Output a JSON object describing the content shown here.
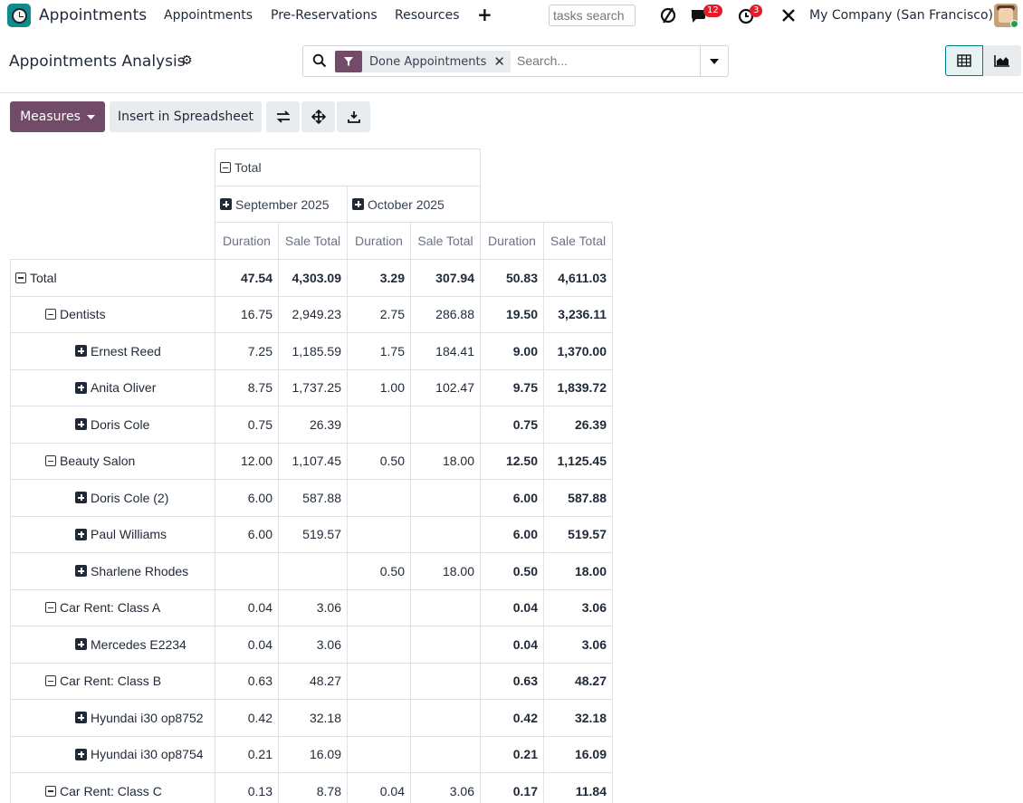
{
  "navbar": {
    "app_name": "Appointments",
    "menu": [
      "Appointments",
      "Pre-Reservations",
      "Resources"
    ],
    "tasks_search_placeholder": "tasks search",
    "messages_badge": "12",
    "activities_badge": "3",
    "company": "My Company (San Francisco)"
  },
  "control": {
    "title": "Appointments Analysis",
    "facet_label": "Done Appointments",
    "search_placeholder": "Search..."
  },
  "buttons": {
    "measures": "Measures",
    "insert_spreadsheet": "Insert in Spreadsheet"
  },
  "pivot": {
    "col_total": "Total",
    "months": [
      "September 2025",
      "October 2025"
    ],
    "measures": [
      "Duration",
      "Sale Total",
      "Duration",
      "Sale Total",
      "Duration",
      "Sale Total"
    ],
    "rows": [
      {
        "label": "Total",
        "level": 0,
        "icon": "minus",
        "vals": [
          "47.54",
          "4,303.09",
          "3.29",
          "307.94",
          "50.83",
          "4,611.03"
        ],
        "bold_all": true
      },
      {
        "label": "Dentists",
        "level": 1,
        "icon": "minus",
        "vals": [
          "16.75",
          "2,949.23",
          "2.75",
          "286.88",
          "19.50",
          "3,236.11"
        ]
      },
      {
        "label": "Ernest Reed",
        "level": 2,
        "icon": "plus",
        "vals": [
          "7.25",
          "1,185.59",
          "1.75",
          "184.41",
          "9.00",
          "1,370.00"
        ]
      },
      {
        "label": "Anita Oliver",
        "level": 2,
        "icon": "plus",
        "vals": [
          "8.75",
          "1,737.25",
          "1.00",
          "102.47",
          "9.75",
          "1,839.72"
        ]
      },
      {
        "label": "Doris Cole",
        "level": 2,
        "icon": "plus",
        "vals": [
          "0.75",
          "26.39",
          "",
          "",
          "0.75",
          "26.39"
        ]
      },
      {
        "label": "Beauty Salon",
        "level": 1,
        "icon": "minus",
        "vals": [
          "12.00",
          "1,107.45",
          "0.50",
          "18.00",
          "12.50",
          "1,125.45"
        ]
      },
      {
        "label": "Doris Cole (2)",
        "level": 2,
        "icon": "plus",
        "vals": [
          "6.00",
          "587.88",
          "",
          "",
          "6.00",
          "587.88"
        ]
      },
      {
        "label": "Paul Williams",
        "level": 2,
        "icon": "plus",
        "vals": [
          "6.00",
          "519.57",
          "",
          "",
          "6.00",
          "519.57"
        ]
      },
      {
        "label": "Sharlene Rhodes",
        "level": 2,
        "icon": "plus",
        "vals": [
          "",
          "",
          "0.50",
          "18.00",
          "0.50",
          "18.00"
        ]
      },
      {
        "label": "Car Rent: Class A",
        "level": 1,
        "icon": "minus",
        "vals": [
          "0.04",
          "3.06",
          "",
          "",
          "0.04",
          "3.06"
        ]
      },
      {
        "label": "Mercedes E2234",
        "level": 2,
        "icon": "plus",
        "vals": [
          "0.04",
          "3.06",
          "",
          "",
          "0.04",
          "3.06"
        ]
      },
      {
        "label": "Car Rent: Class B",
        "level": 1,
        "icon": "minus",
        "vals": [
          "0.63",
          "48.27",
          "",
          "",
          "0.63",
          "48.27"
        ]
      },
      {
        "label": "Hyundai i30 op8752",
        "level": 2,
        "icon": "plus",
        "vals": [
          "0.42",
          "32.18",
          "",
          "",
          "0.42",
          "32.18"
        ]
      },
      {
        "label": "Hyundai i30 op8754",
        "level": 2,
        "icon": "plus",
        "vals": [
          "0.21",
          "16.09",
          "",
          "",
          "0.21",
          "16.09"
        ]
      },
      {
        "label": "Car Rent: Class C",
        "level": 1,
        "icon": "minus",
        "vals": [
          "0.13",
          "8.78",
          "0.04",
          "3.06",
          "0.17",
          "11.84"
        ]
      }
    ]
  }
}
